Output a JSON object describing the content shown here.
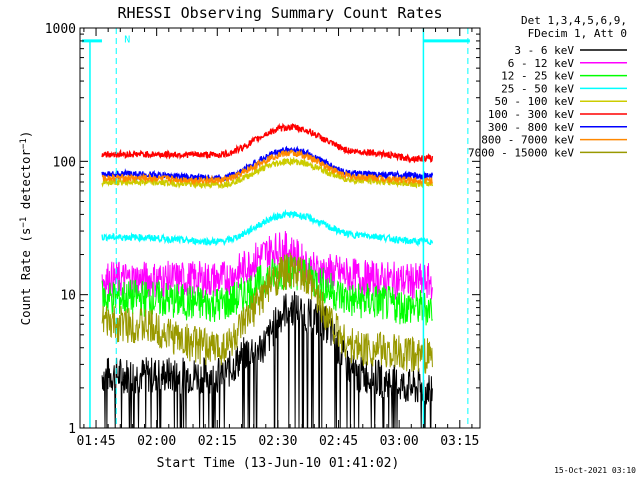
{
  "chart_data": {
    "type": "line",
    "title": "RHESSI Observing Summary Count Rates",
    "xlabel": "Start Time (13-Jun-10 01:41:02)",
    "ylabel": "Count Rate (s⁻¹ detector⁻¹)",
    "yscale": "log",
    "ylim": [
      1,
      1000
    ],
    "xlim": [
      "01:41:02",
      "03:20:00"
    ],
    "x_tick_labels": [
      "01:45",
      "02:00",
      "02:15",
      "02:30",
      "02:45",
      "03:00",
      "03:15"
    ],
    "x_tick_minutes": [
      105,
      120,
      135,
      150,
      165,
      180,
      195
    ],
    "y_tick_labels": [
      "1",
      "10",
      "100",
      "1000"
    ],
    "y_tick_values": [
      1,
      10,
      100,
      1000
    ],
    "legend_header": [
      "Det 1,3,4,5,6,9,",
      "FDecim 1, Att 0"
    ],
    "legend_placement": "right",
    "series": [
      {
        "name": "3 - 6 keV",
        "color": "#000000",
        "flare_peak_minute": 153,
        "values_at": {
          "01:53": 2.5,
          "02:15": 2.5,
          "02:25": 4.0,
          "02:33": 8.0,
          "02:40": 6.5,
          "02:50": 2.5,
          "03:05": 2.0
        }
      },
      {
        "name": "6 - 12 keV",
        "color": "#ff00ff",
        "flare_peak_minute": 150,
        "values_at": {
          "01:53": 13,
          "02:15": 13,
          "02:31": 22,
          "02:40": 15,
          "02:55": 13,
          "03:05": 12.5
        }
      },
      {
        "name": "12 - 25 keV",
        "color": "#00ff00",
        "flare_peak_minute": 153,
        "values_at": {
          "01:53": 9.5,
          "02:15": 8.5,
          "02:33": 15,
          "02:50": 9,
          "03:05": 8
        }
      },
      {
        "name": "25 - 50 keV",
        "color": "#00ffff",
        "flare_peak_minute": 153,
        "values_at": {
          "01:53": 27,
          "02:15": 25,
          "02:33": 40,
          "02:50": 28,
          "03:05": 25
        }
      },
      {
        "name": "50 - 100 keV",
        "color": "#cccc00",
        "flare_peak_minute": 153,
        "values_at": {
          "01:53": 70,
          "02:15": 67,
          "02:33": 100,
          "02:50": 72,
          "03:05": 68
        }
      },
      {
        "name": "100 - 300 keV",
        "color": "#ff0000",
        "flare_peak_minute": 153,
        "values_at": {
          "01:53": 113,
          "02:15": 112,
          "02:33": 180,
          "02:50": 118,
          "03:05": 105
        }
      },
      {
        "name": "300 - 800 keV",
        "color": "#0000ff",
        "flare_peak_minute": 153,
        "values_at": {
          "01:53": 80,
          "02:15": 75,
          "02:33": 122,
          "02:50": 80,
          "03:05": 78
        }
      },
      {
        "name": "800 - 7000 keV",
        "color": "#ff8800",
        "flare_peak_minute": 153,
        "values_at": {
          "01:53": 75,
          "02:15": 72,
          "02:33": 115,
          "02:50": 76,
          "03:05": 72
        }
      },
      {
        "name": "7000 - 15000 keV",
        "color": "#999900",
        "flare_peak_minute": 153,
        "values_at": {
          "01:53": 6,
          "02:15": 4,
          "02:33": 15,
          "02:50": 4,
          "03:05": 3.5
        }
      }
    ],
    "markers": {
      "night_label": "N",
      "boundaries_minutes": [
        103.5,
        110,
        186,
        197
      ]
    },
    "timestamp": "15-Oct-2021 03:10"
  }
}
